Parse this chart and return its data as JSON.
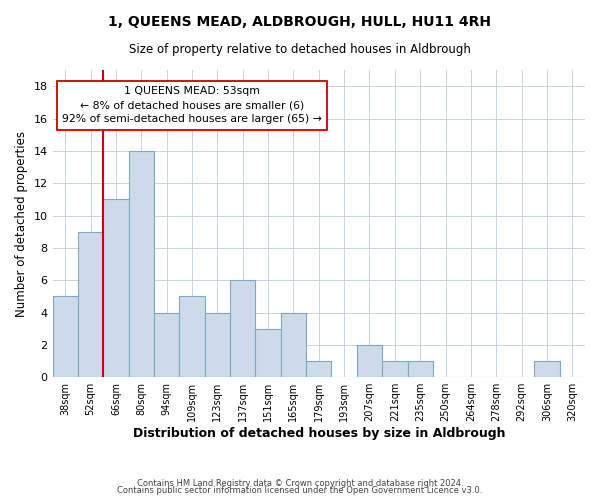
{
  "title": "1, QUEENS MEAD, ALDBROUGH, HULL, HU11 4RH",
  "subtitle": "Size of property relative to detached houses in Aldbrough",
  "xlabel": "Distribution of detached houses by size in Aldbrough",
  "ylabel": "Number of detached properties",
  "bar_color": "#ccdaea",
  "bar_edge_color": "#7aaac8",
  "bin_labels": [
    "38sqm",
    "52sqm",
    "66sqm",
    "80sqm",
    "94sqm",
    "109sqm",
    "123sqm",
    "137sqm",
    "151sqm",
    "165sqm",
    "179sqm",
    "193sqm",
    "207sqm",
    "221sqm",
    "235sqm",
    "250sqm",
    "264sqm",
    "278sqm",
    "292sqm",
    "306sqm",
    "320sqm"
  ],
  "bar_heights": [
    5,
    9,
    11,
    14,
    4,
    5,
    4,
    6,
    3,
    4,
    1,
    0,
    2,
    1,
    1,
    0,
    0,
    0,
    0,
    1,
    0
  ],
  "ylim": [
    0,
    19
  ],
  "yticks": [
    0,
    2,
    4,
    6,
    8,
    10,
    12,
    14,
    16,
    18
  ],
  "marker_line_color": "#cc0000",
  "annotation_line1": "1 QUEENS MEAD: 53sqm",
  "annotation_line2": "← 8% of detached houses are smaller (6)",
  "annotation_line3": "92% of semi-detached houses are larger (65) →",
  "annotation_box_color": "#ffffff",
  "annotation_box_edge": "#cc0000",
  "footer1": "Contains HM Land Registry data © Crown copyright and database right 2024.",
  "footer2": "Contains public sector information licensed under the Open Government Licence v3.0.",
  "background_color": "#ffffff",
  "grid_color": "#c8d4e0"
}
